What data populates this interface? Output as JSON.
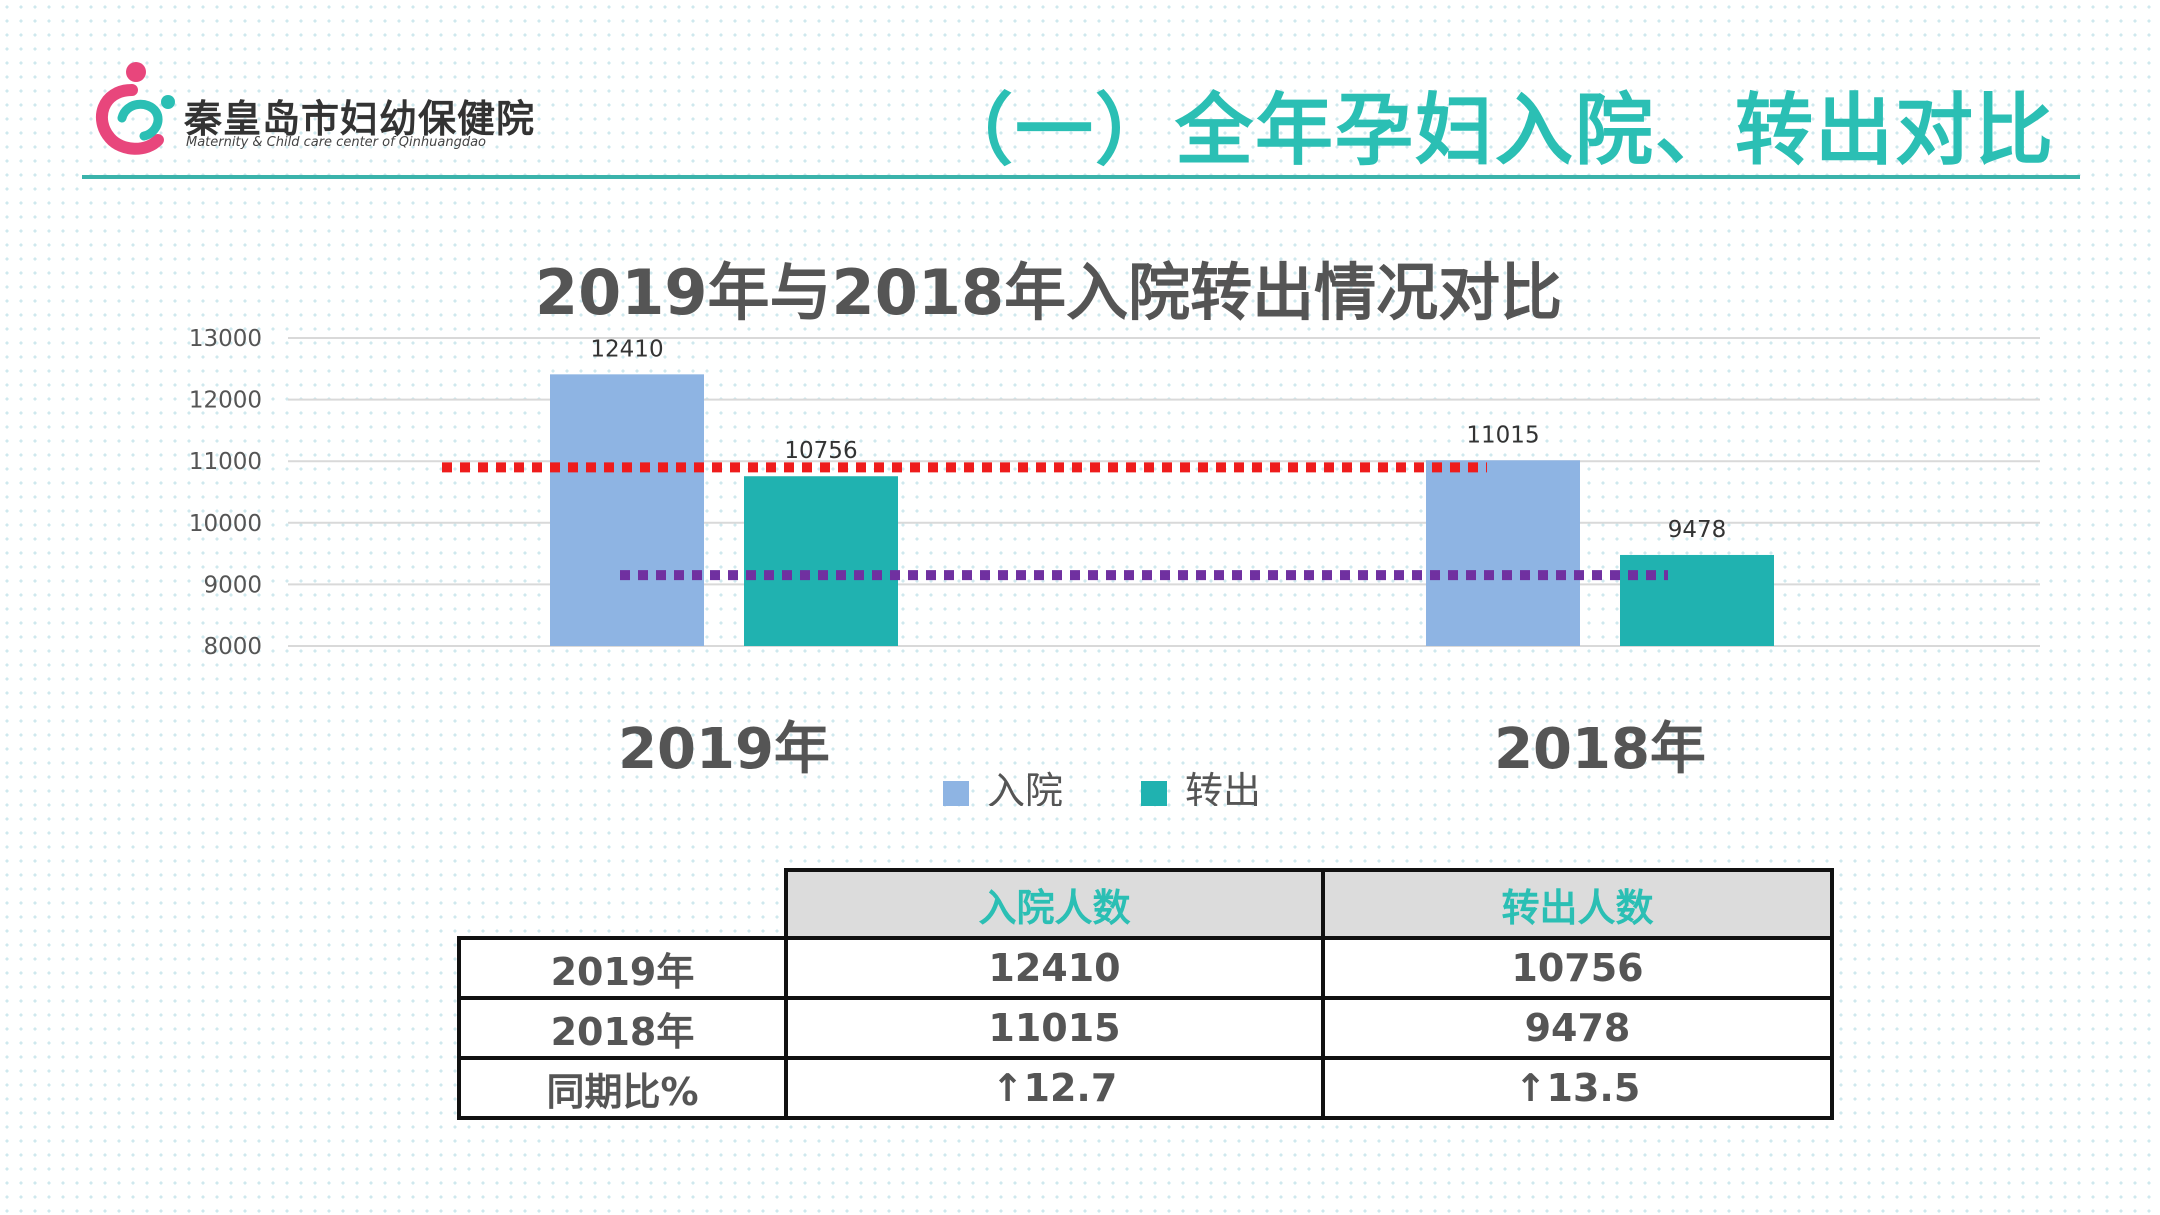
{
  "header": {
    "logo_name": "秦皇岛市妇幼保健院",
    "logo_sub": "Maternity & Child care center of Qinhuangdao",
    "slide_title": "（一）全年孕妇入院、转出对比"
  },
  "colors": {
    "admit": "#8eb4e3",
    "transfer": "#20b2b0",
    "accent": "#2bbfb4",
    "ref_red": "#ee1c1c",
    "ref_purple": "#7030a0"
  },
  "chart_data": {
    "type": "bar",
    "title": "2019年与2018年入院转出情况对比",
    "categories": [
      "2019年",
      "2018年"
    ],
    "series": [
      {
        "name": "入院",
        "values": [
          12410,
          11015
        ]
      },
      {
        "name": "转出",
        "values": [
          10756,
          9478
        ]
      }
    ],
    "ylim": [
      8000,
      13000
    ],
    "yticks": [
      "13000",
      "12000",
      "11000",
      "10000",
      "9000",
      "8000"
    ],
    "grid": true,
    "legend": "bottom",
    "reference_lines": [
      {
        "y": 10900,
        "style": "dotted",
        "color": "red"
      },
      {
        "y": 9150,
        "style": "dotted",
        "color": "purple"
      }
    ]
  },
  "table": {
    "headers": [
      "",
      "入院人数",
      "转出人数"
    ],
    "rows": [
      [
        "2019年",
        "12410",
        "10756"
      ],
      [
        "2018年",
        "11015",
        "9478"
      ],
      [
        "同期比%",
        "↑12.7",
        "↑13.5"
      ]
    ]
  }
}
